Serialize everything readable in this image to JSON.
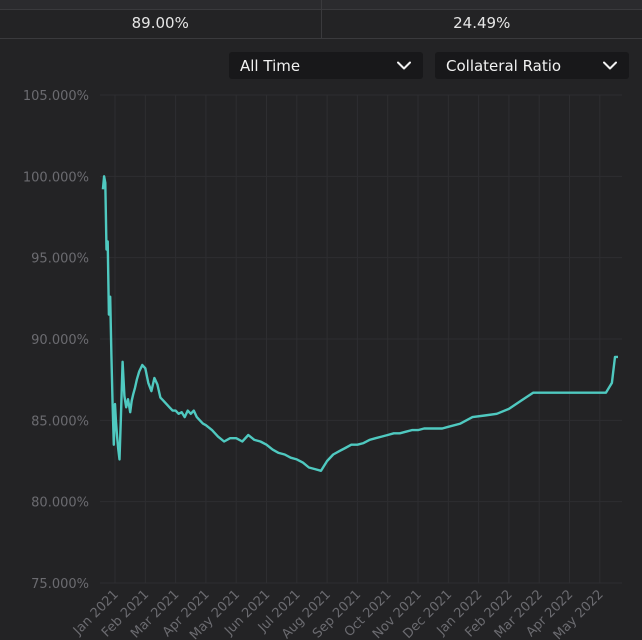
{
  "stats": {
    "left_value": "89.00%",
    "right_value": "24.49%"
  },
  "controls": {
    "range_label": "All Time",
    "metric_label": "Collateral Ratio"
  },
  "icons": {
    "dropdown": "chevron-down-icon"
  },
  "colors": {
    "line": "#4fc9c0",
    "background": "#232325"
  },
  "chart_data": {
    "type": "line",
    "title": "",
    "xlabel": "",
    "ylabel": "",
    "ylim": [
      75,
      105
    ],
    "yticks": [
      "105.000%",
      "100.000%",
      "95.000%",
      "90.000%",
      "85.000%",
      "80.000%",
      "75.000%"
    ],
    "ytick_values": [
      105,
      100,
      95,
      90,
      85,
      80,
      75
    ],
    "xticks": [
      "Jan 2021",
      "Feb 2021",
      "Mar 2021",
      "Apr 2021",
      "May 2021",
      "Jun 2021",
      "Jul 2021",
      "Aug 2021",
      "Sep 2021",
      "Oct 2021",
      "Nov 2021",
      "Dec 2021",
      "Jan 2022",
      "Feb 2022",
      "Mar 2022",
      "Apr 2022",
      "May 2022"
    ],
    "xtick_positions": [
      0,
      1,
      2,
      3,
      4,
      5,
      6,
      7,
      8,
      9,
      10,
      11,
      12,
      13,
      14,
      15,
      16
    ],
    "grid": true,
    "series": [
      {
        "x": [
          -0.4,
          -0.36,
          -0.32,
          -0.28,
          -0.24,
          -0.2,
          -0.16,
          -0.12,
          -0.08,
          -0.04,
          0.0,
          0.03,
          0.07,
          0.11,
          0.15,
          0.19,
          0.25,
          0.31,
          0.37,
          0.43,
          0.5,
          0.55,
          0.6,
          0.66,
          0.72,
          0.8,
          0.9,
          1.0,
          1.1,
          1.2,
          1.3,
          1.4,
          1.5,
          1.6,
          1.7,
          1.8,
          1.9,
          2.0,
          2.1,
          2.2,
          2.3,
          2.4,
          2.5,
          2.6,
          2.7,
          2.8,
          2.9,
          3.0,
          3.2,
          3.4,
          3.6,
          3.8,
          4.0,
          4.2,
          4.4,
          4.6,
          4.8,
          5.0,
          5.2,
          5.4,
          5.6,
          5.8,
          6.0,
          6.2,
          6.4,
          6.6,
          6.8,
          7.0,
          7.2,
          7.4,
          7.6,
          7.8,
          8.0,
          8.2,
          8.4,
          8.6,
          8.8,
          9.0,
          9.2,
          9.4,
          9.6,
          9.8,
          10.0,
          10.2,
          10.4,
          10.6,
          10.8,
          11.0,
          11.4,
          11.8,
          12.2,
          12.6,
          13.0,
          13.4,
          13.8,
          14.2,
          14.6,
          14.8,
          15.0,
          15.2,
          15.4,
          15.6,
          15.8,
          16.0,
          16.2,
          16.4,
          16.5,
          16.6
        ],
        "y": [
          99.2,
          100.0,
          99.6,
          95.5,
          96.0,
          91.5,
          92.6,
          89.0,
          86.0,
          83.5,
          86.0,
          85.0,
          84.0,
          83.2,
          82.6,
          85.0,
          88.6,
          86.5,
          85.8,
          86.3,
          85.5,
          86.2,
          86.6,
          87.0,
          87.5,
          88.0,
          88.4,
          88.2,
          87.3,
          86.8,
          87.6,
          87.2,
          86.4,
          86.2,
          86.0,
          85.8,
          85.6,
          85.6,
          85.4,
          85.5,
          85.2,
          85.6,
          85.4,
          85.6,
          85.2,
          85.0,
          84.8,
          84.7,
          84.4,
          84.0,
          83.7,
          83.9,
          83.9,
          83.7,
          84.1,
          83.8,
          83.7,
          83.5,
          83.2,
          83.0,
          82.9,
          82.7,
          82.6,
          82.4,
          82.1,
          82.0,
          81.9,
          82.5,
          82.9,
          83.1,
          83.3,
          83.5,
          83.5,
          83.6,
          83.8,
          83.9,
          84.0,
          84.1,
          84.2,
          84.2,
          84.3,
          84.4,
          84.4,
          84.5,
          84.5,
          84.5,
          84.5,
          84.6,
          84.8,
          85.2,
          85.3,
          85.4,
          85.7,
          86.2,
          86.7,
          86.7,
          86.7,
          86.7,
          86.7,
          86.7,
          86.7,
          86.7,
          86.7,
          86.7,
          86.7,
          87.3,
          88.9,
          88.9
        ]
      }
    ]
  }
}
